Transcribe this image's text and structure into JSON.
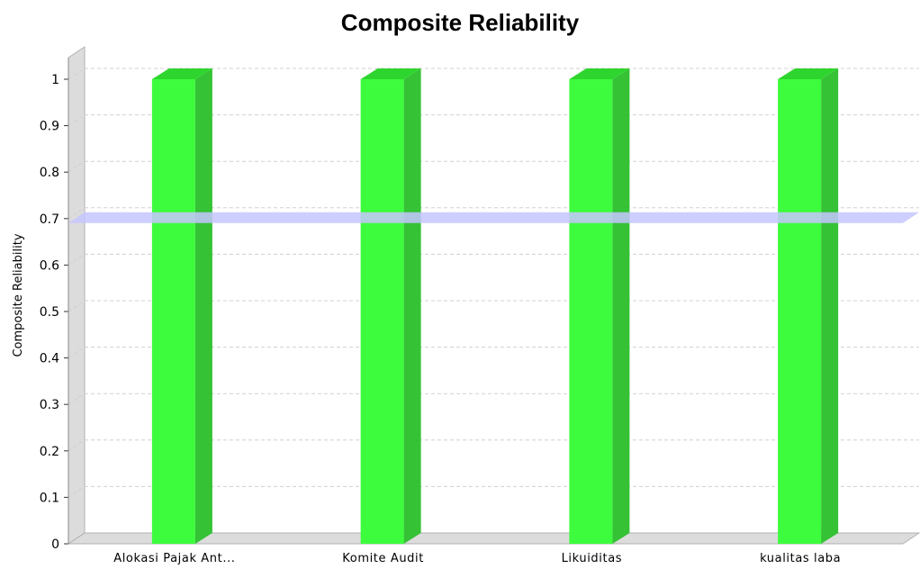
{
  "chart_data": {
    "type": "bar",
    "title": "Composite Reliability",
    "xlabel": "",
    "ylabel": "Composite Reliability",
    "categories": [
      "Alokasi Pajak Ant...",
      "Komite Audit",
      "Likuiditas",
      "kualitas laba"
    ],
    "series": [
      {
        "values": [
          1,
          1,
          1,
          1
        ]
      }
    ],
    "ylim": [
      0,
      1
    ],
    "yticks": [
      "0",
      "0.1",
      "0.2",
      "0.3",
      "0.4",
      "0.5",
      "0.6",
      "0.7",
      "0.8",
      "0.9",
      "1"
    ],
    "threshold": 0.7,
    "grid": true,
    "legend": "none",
    "colors": {
      "bar": "#3dfc3d",
      "bar_side": "#35c235",
      "bar_top": "#2fd52f",
      "threshold": "#c6c6ff",
      "wall": "#dcdcdc",
      "grid": "#d0d0d0"
    }
  }
}
